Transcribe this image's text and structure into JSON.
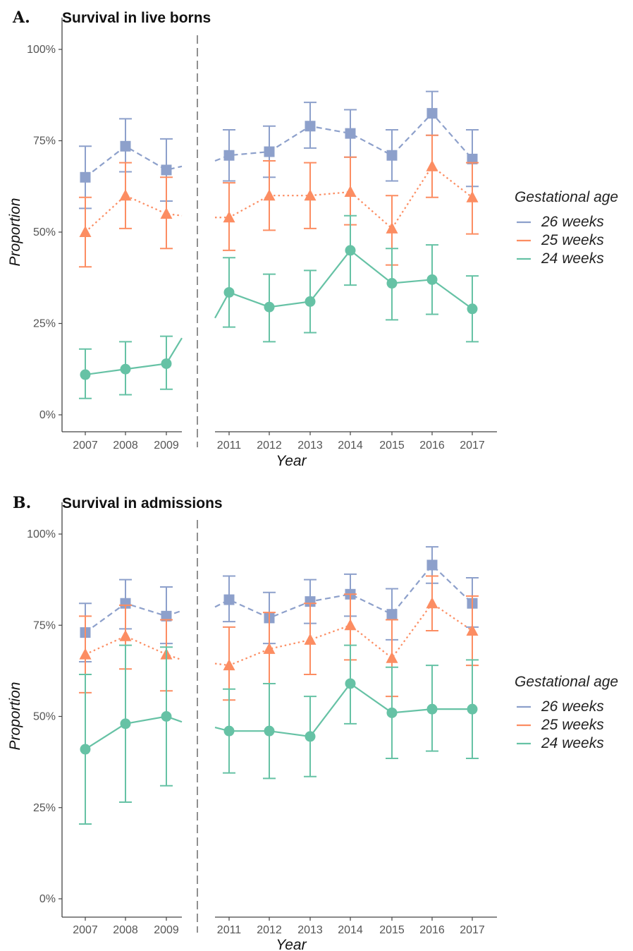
{
  "panels": [
    {
      "letter": "A.",
      "title": "Survival in live borns"
    },
    {
      "letter": "B.",
      "title": "Survival in admissions"
    }
  ],
  "colors": {
    "w26": "#8DA0CB",
    "w25": "#FC8D62",
    "w24": "#66C2A5",
    "axis": "#444444",
    "tick_text": "#555555"
  },
  "chart_data": [
    {
      "type": "line",
      "title": "Survival in live borns",
      "xlabel": "Year",
      "ylabel": "Proportion",
      "y_ticks": [
        "0%",
        "25%",
        "50%",
        "75%",
        "100%"
      ],
      "ylim": [
        0,
        1
      ],
      "x_left": [
        "2007",
        "2008",
        "2009"
      ],
      "x_right": [
        "2011",
        "2012",
        "2013",
        "2014",
        "2015",
        "2016",
        "2017"
      ],
      "legend": {
        "title": "Gestational age",
        "position": "right"
      },
      "series": [
        {
          "name": "26 weeks",
          "key": "w26",
          "marker": "square",
          "line": "dashed",
          "values": [
            0.65,
            0.735,
            0.67,
            0.71,
            0.72,
            0.79,
            0.77,
            0.71,
            0.825,
            0.7
          ],
          "lower": [
            0.565,
            0.665,
            0.585,
            0.64,
            0.65,
            0.73,
            0.705,
            0.64,
            0.765,
            0.625
          ],
          "upper": [
            0.735,
            0.81,
            0.755,
            0.78,
            0.79,
            0.855,
            0.835,
            0.78,
            0.885,
            0.78
          ],
          "edge_left": 0.68,
          "edge_right": 0.695
        },
        {
          "name": "25 weeks",
          "key": "w25",
          "marker": "triangle",
          "line": "dotted",
          "values": [
            0.5,
            0.6,
            0.55,
            0.54,
            0.6,
            0.6,
            0.61,
            0.51,
            0.68,
            0.595
          ],
          "lower": [
            0.405,
            0.51,
            0.455,
            0.45,
            0.505,
            0.51,
            0.52,
            0.41,
            0.595,
            0.495
          ],
          "upper": [
            0.595,
            0.69,
            0.65,
            0.635,
            0.695,
            0.69,
            0.705,
            0.6,
            0.765,
            0.69
          ],
          "edge_left": 0.545,
          "edge_right": 0.54
        },
        {
          "name": "24 weeks",
          "key": "w24",
          "marker": "circle",
          "line": "solid",
          "values": [
            0.11,
            0.125,
            0.14,
            0.335,
            0.295,
            0.31,
            0.45,
            0.36,
            0.37,
            0.29
          ],
          "lower": [
            0.045,
            0.055,
            0.07,
            0.24,
            0.2,
            0.225,
            0.355,
            0.26,
            0.275,
            0.2
          ],
          "upper": [
            0.18,
            0.2,
            0.215,
            0.43,
            0.385,
            0.395,
            0.545,
            0.455,
            0.465,
            0.38
          ],
          "edge_left": 0.21,
          "edge_right": 0.265
        }
      ]
    },
    {
      "type": "line",
      "title": "Survival in admissions",
      "xlabel": "Year",
      "ylabel": "Proportion",
      "y_ticks": [
        "0%",
        "25%",
        "50%",
        "75%",
        "100%"
      ],
      "ylim": [
        0,
        1
      ],
      "x_left": [
        "2007",
        "2008",
        "2009"
      ],
      "x_right": [
        "2011",
        "2012",
        "2013",
        "2014",
        "2015",
        "2016",
        "2017"
      ],
      "legend": {
        "title": "Gestational age",
        "position": "right"
      },
      "series": [
        {
          "name": "26 weeks",
          "key": "w26",
          "marker": "square",
          "line": "dashed",
          "values": [
            0.73,
            0.81,
            0.775,
            0.82,
            0.77,
            0.815,
            0.835,
            0.78,
            0.915,
            0.81
          ],
          "lower": [
            0.65,
            0.74,
            0.7,
            0.76,
            0.7,
            0.755,
            0.775,
            0.71,
            0.865,
            0.745
          ],
          "upper": [
            0.81,
            0.875,
            0.855,
            0.885,
            0.84,
            0.875,
            0.89,
            0.85,
            0.965,
            0.88
          ],
          "edge_left": 0.79,
          "edge_right": 0.8
        },
        {
          "name": "25 weeks",
          "key": "w25",
          "marker": "triangle",
          "line": "dotted",
          "values": [
            0.67,
            0.72,
            0.67,
            0.64,
            0.685,
            0.71,
            0.75,
            0.66,
            0.81,
            0.735
          ],
          "lower": [
            0.565,
            0.63,
            0.57,
            0.545,
            0.59,
            0.615,
            0.655,
            0.555,
            0.735,
            0.64
          ],
          "upper": [
            0.775,
            0.805,
            0.765,
            0.745,
            0.785,
            0.81,
            0.835,
            0.765,
            0.885,
            0.83
          ],
          "edge_left": 0.655,
          "edge_right": 0.645
        },
        {
          "name": "24 weeks",
          "key": "w24",
          "marker": "circle",
          "line": "solid",
          "values": [
            0.41,
            0.48,
            0.5,
            0.46,
            0.46,
            0.445,
            0.59,
            0.51,
            0.52,
            0.52
          ],
          "lower": [
            0.205,
            0.265,
            0.31,
            0.345,
            0.33,
            0.335,
            0.48,
            0.385,
            0.405,
            0.385
          ],
          "upper": [
            0.615,
            0.695,
            0.69,
            0.575,
            0.59,
            0.555,
            0.695,
            0.635,
            0.64,
            0.655
          ],
          "edge_left": 0.485,
          "edge_right": 0.47
        }
      ]
    }
  ]
}
